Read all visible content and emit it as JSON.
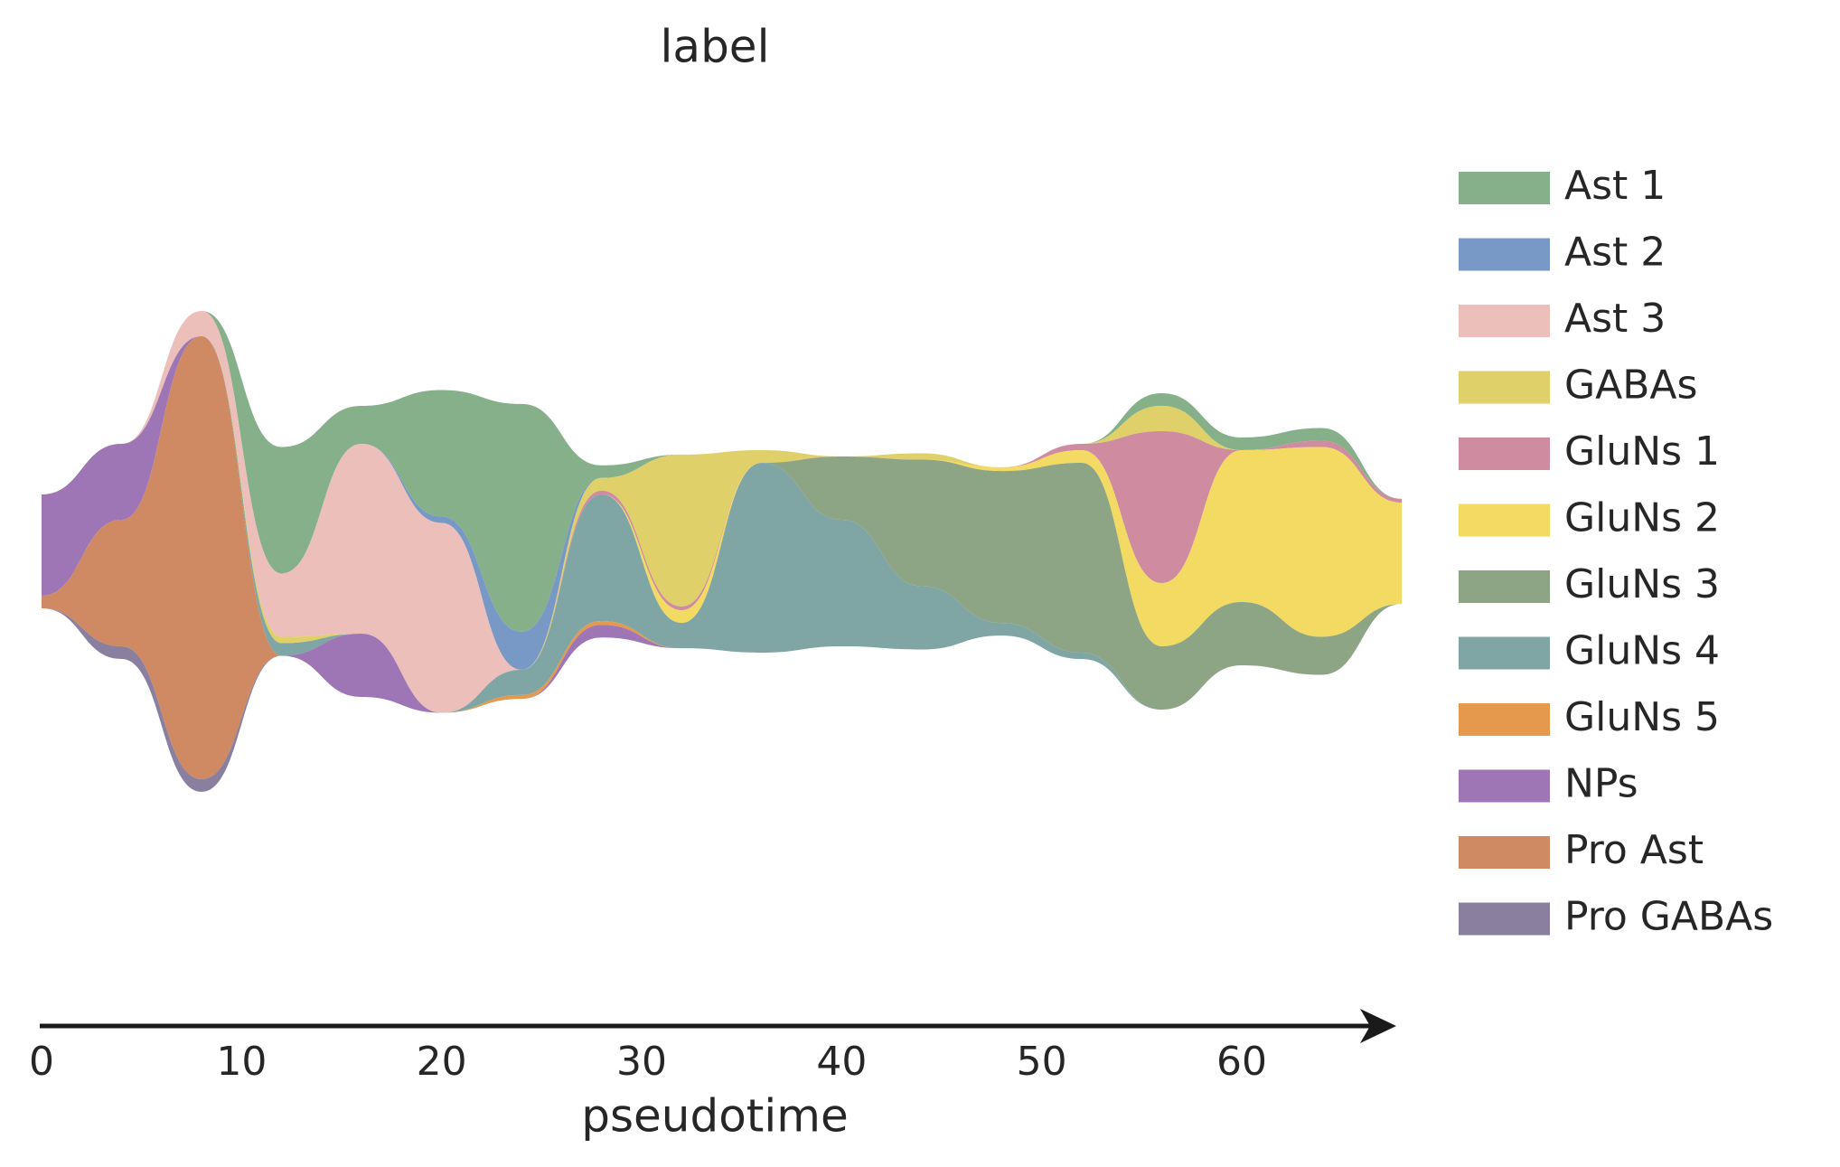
{
  "chart_data": {
    "type": "stream",
    "title": "label",
    "xlabel": "pseudotime",
    "x": [
      0,
      4,
      8,
      12,
      16,
      20,
      24,
      28,
      32,
      36,
      40,
      44,
      48,
      52,
      56,
      60,
      64,
      68
    ],
    "xlim": [
      0,
      67.5
    ],
    "xticks": [
      0,
      10,
      20,
      30,
      40,
      50,
      60
    ],
    "series": [
      {
        "name": "Ast 1",
        "color": "#86b08a",
        "values": [
          0,
          0,
          0,
          10,
          3,
          10,
          18,
          1,
          0,
          0,
          0,
          0,
          0,
          0,
          1,
          1,
          1,
          0
        ]
      },
      {
        "name": "Ast 2",
        "color": "#7898c6",
        "values": [
          0,
          0,
          0,
          0,
          0,
          0.5,
          3,
          0,
          0,
          0,
          0,
          0,
          0,
          0,
          0,
          0,
          0,
          0
        ]
      },
      {
        "name": "Ast 3",
        "color": "#ecbfba",
        "values": [
          0,
          0,
          2,
          5,
          15,
          15,
          0,
          0,
          0,
          0,
          0,
          0,
          0,
          0,
          0,
          0,
          0,
          0
        ]
      },
      {
        "name": "GABAs",
        "color": "#dfd06a",
        "values": [
          0,
          0,
          0,
          0.5,
          0,
          0,
          0,
          1,
          12,
          1,
          0,
          0.5,
          0,
          0,
          2,
          0,
          0,
          0
        ]
      },
      {
        "name": "GluNs 1",
        "color": "#cf8ba0",
        "values": [
          0,
          0,
          0,
          0,
          0,
          0,
          0,
          0.3,
          0.3,
          0,
          0,
          0,
          0,
          0.5,
          12,
          0,
          0.5,
          0.3
        ]
      },
      {
        "name": "GluNs 2",
        "color": "#f3db63",
        "values": [
          0,
          0,
          0,
          0,
          0,
          0,
          0,
          0,
          1,
          0,
          0,
          0,
          0.3,
          1,
          5,
          12,
          15,
          8
        ]
      },
      {
        "name": "GluNs 3",
        "color": "#8da584",
        "values": [
          0,
          0,
          0,
          0,
          0,
          0,
          0,
          0,
          0,
          0,
          5,
          10,
          12,
          15,
          5,
          5,
          3,
          0
        ]
      },
      {
        "name": "GluNs 4",
        "color": "#7fa6a4",
        "values": [
          0,
          0,
          0,
          1,
          0,
          0,
          2,
          10,
          2,
          15,
          10,
          5,
          1,
          0.5,
          0,
          0,
          0,
          0
        ]
      },
      {
        "name": "GluNs 5",
        "color": "#e4994c",
        "values": [
          0,
          0,
          0,
          0,
          0,
          0,
          0.3,
          0.3,
          0,
          0,
          0,
          0,
          0,
          0,
          0,
          0,
          0,
          0
        ]
      },
      {
        "name": "NPs",
        "color": "#9e76b6",
        "values": [
          8,
          6,
          0,
          0,
          5,
          0,
          0,
          1,
          0,
          0,
          0,
          0,
          0,
          0,
          0,
          0,
          0,
          0
        ]
      },
      {
        "name": "Pro Ast",
        "color": "#cf8a64",
        "values": [
          1,
          10,
          35,
          0,
          0,
          0,
          0,
          0,
          0,
          0,
          0,
          0,
          0,
          0,
          0,
          0,
          0,
          0
        ]
      },
      {
        "name": "Pro GABAs",
        "color": "#8a7f9e",
        "values": [
          0,
          1,
          1,
          0,
          0,
          0,
          0,
          0,
          0,
          0,
          0,
          0,
          0,
          0,
          0,
          0,
          0,
          0
        ]
      }
    ]
  }
}
